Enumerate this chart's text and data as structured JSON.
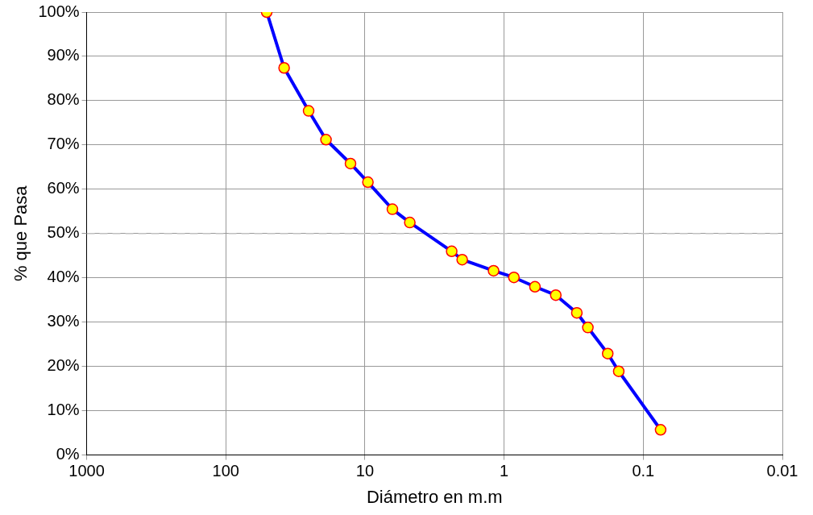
{
  "chart_data": {
    "type": "line",
    "xlabel": "Diámetro en m.m",
    "ylabel": "% que Pasa",
    "x": [
      50.8,
      38.1,
      25.4,
      19.05,
      12.7,
      9.52,
      6.35,
      4.76,
      2.38,
      2.0,
      1.19,
      0.85,
      0.6,
      0.425,
      0.3,
      0.25,
      0.18,
      0.15,
      0.075
    ],
    "series": [
      {
        "color": "#0000ff",
        "values": [
          100,
          87.4,
          77.7,
          71.2,
          65.8,
          61.6,
          55.5,
          52.5,
          46.0,
          44.1,
          41.6,
          40.1,
          38.0,
          36.1,
          32.1,
          28.8,
          22.9,
          18.9,
          5.7
        ]
      }
    ],
    "log": "x",
    "xlim": [
      1000,
      0.01
    ],
    "xticks": [
      {
        "value": 1000,
        "label": "1000"
      },
      {
        "value": 100,
        "label": "100"
      },
      {
        "value": 10,
        "label": "10"
      },
      {
        "value": 1,
        "label": "1"
      },
      {
        "value": 0.1,
        "label": "0.1"
      },
      {
        "value": 0.01,
        "label": "0.01"
      }
    ],
    "ylim": [
      0,
      100
    ],
    "yticks": [
      {
        "value": 0,
        "label": "0%"
      },
      {
        "value": 10,
        "label": "10%"
      },
      {
        "value": 20,
        "label": "20%"
      },
      {
        "value": 30,
        "label": "30%"
      },
      {
        "value": 40,
        "label": "40%"
      },
      {
        "value": 50,
        "label": "50%"
      },
      {
        "value": 60,
        "label": "60%"
      },
      {
        "value": 70,
        "label": "70%"
      },
      {
        "value": 80,
        "label": "80%"
      },
      {
        "value": 90,
        "label": "90%"
      },
      {
        "value": 100,
        "label": "100%"
      }
    ],
    "ref_lines": [
      {
        "axis": "y",
        "value": 50,
        "color": "#c0c0c0",
        "line_style": "dashed"
      }
    ],
    "grid": true,
    "marker": "circle",
    "line_style": "solid",
    "legend": false
  }
}
